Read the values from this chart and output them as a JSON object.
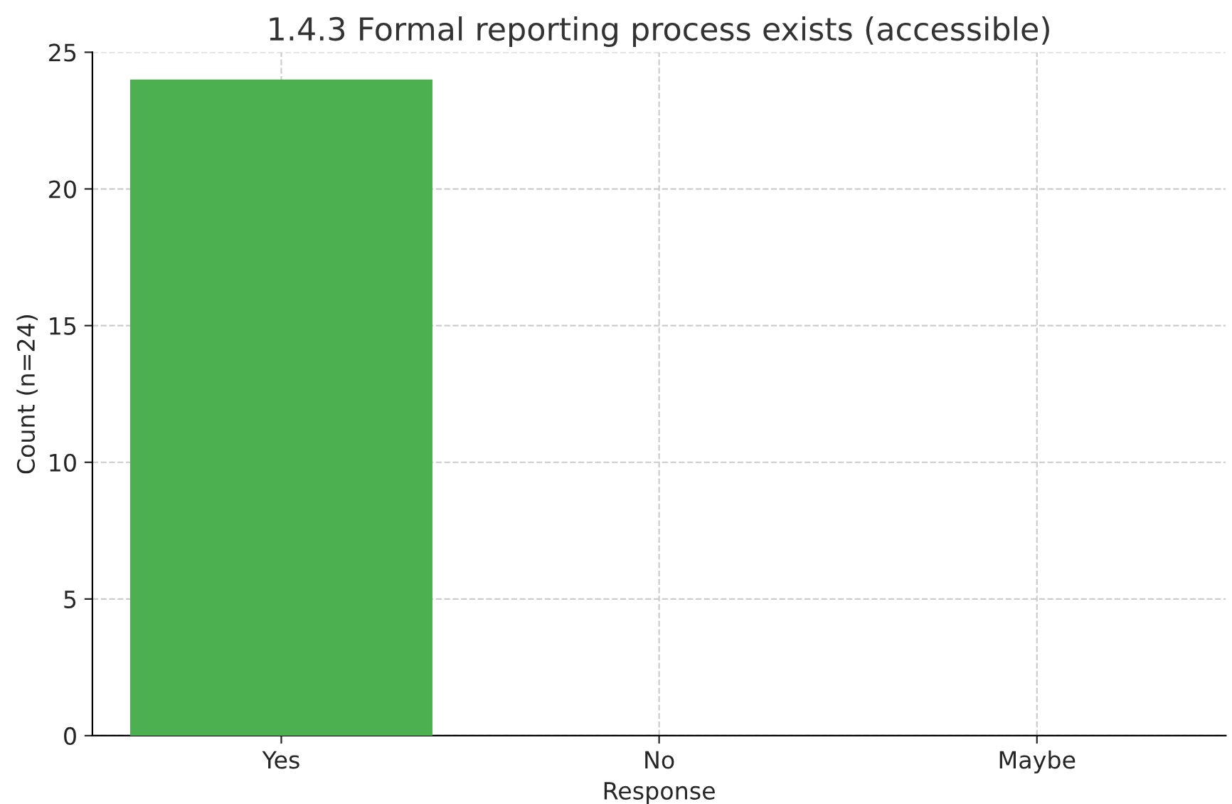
{
  "chart_data": {
    "type": "bar",
    "title": "1.4.3 Formal reporting process exists (accessible)",
    "xlabel": "Response",
    "ylabel": "Count (n=24)",
    "categories": [
      "Yes",
      "No",
      "Maybe"
    ],
    "values": [
      24,
      0,
      0
    ],
    "color": "#4caf50",
    "ylim": [
      0,
      25
    ],
    "yticks": [
      0,
      5,
      10,
      15,
      20,
      25
    ],
    "grid": true
  }
}
